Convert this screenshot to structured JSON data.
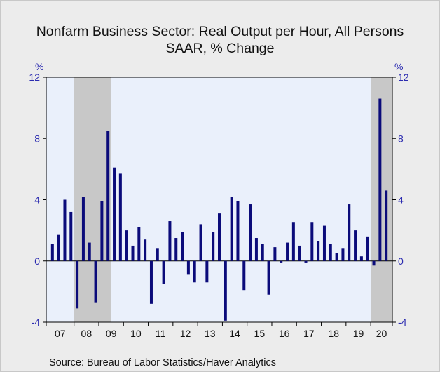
{
  "chart_data": {
    "type": "bar",
    "title": "Nonfarm Business Sector: Real Output per Hour, All Persons",
    "subtitle": "SAAR, % Change",
    "source": "Source:  Bureau of Labor Statistics/Haver Analytics",
    "ylabel_left": "%",
    "ylabel_right": "%",
    "ylim": [
      -4,
      12
    ],
    "yticks": [
      -4,
      0,
      4,
      8,
      12
    ],
    "x_tick_labels": [
      "07",
      "08",
      "09",
      "10",
      "11",
      "12",
      "13",
      "14",
      "15",
      "16",
      "17",
      "18",
      "19",
      "20"
    ],
    "recessions": [
      {
        "start": "2008Q1",
        "end": "2009Q2"
      },
      {
        "start": "2020Q1",
        "end": "2020Q3"
      }
    ],
    "categories": [
      "2007Q1",
      "2007Q2",
      "2007Q3",
      "2007Q4",
      "2008Q1",
      "2008Q2",
      "2008Q3",
      "2008Q4",
      "2009Q1",
      "2009Q2",
      "2009Q3",
      "2009Q4",
      "2010Q1",
      "2010Q2",
      "2010Q3",
      "2010Q4",
      "2011Q1",
      "2011Q2",
      "2011Q3",
      "2011Q4",
      "2012Q1",
      "2012Q2",
      "2012Q3",
      "2012Q4",
      "2013Q1",
      "2013Q2",
      "2013Q3",
      "2013Q4",
      "2014Q1",
      "2014Q2",
      "2014Q3",
      "2014Q4",
      "2015Q1",
      "2015Q2",
      "2015Q3",
      "2015Q4",
      "2016Q1",
      "2016Q2",
      "2016Q3",
      "2016Q4",
      "2017Q1",
      "2017Q2",
      "2017Q3",
      "2017Q4",
      "2018Q1",
      "2018Q2",
      "2018Q3",
      "2018Q4",
      "2019Q1",
      "2019Q2",
      "2019Q3",
      "2019Q4",
      "2020Q1",
      "2020Q2",
      "2020Q3"
    ],
    "values": [
      1.1,
      1.7,
      4.0,
      3.2,
      -3.1,
      4.2,
      1.2,
      -2.7,
      3.9,
      8.5,
      6.1,
      5.7,
      2.0,
      1.0,
      2.2,
      1.4,
      -2.8,
      0.8,
      -1.5,
      2.6,
      1.5,
      1.9,
      -0.9,
      -1.4,
      2.4,
      -1.4,
      1.9,
      3.1,
      -3.9,
      4.2,
      3.9,
      -1.9,
      3.7,
      1.5,
      1.1,
      -2.2,
      0.9,
      -0.1,
      1.2,
      2.5,
      1.0,
      -0.1,
      2.5,
      1.3,
      2.3,
      1.1,
      0.5,
      0.8,
      3.7,
      2.0,
      0.3,
      1.6,
      -0.3,
      10.6,
      4.6
    ],
    "colors": {
      "bar": "#0b0b7a",
      "plot_background": "#eaf0fb",
      "recession_shade": "#c8c8c8",
      "axis_text": "#2b2bb0"
    },
    "grid": false
  }
}
